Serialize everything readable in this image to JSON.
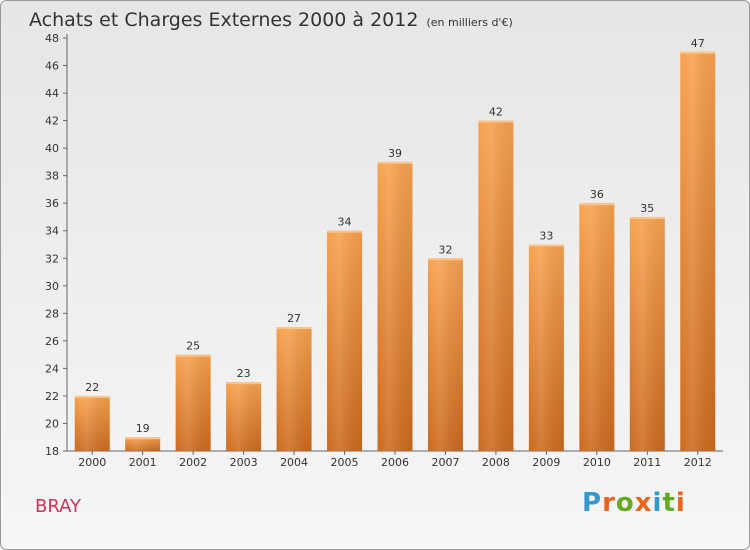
{
  "header": {
    "title": "Achats et Charges Externes 2000 à 2012",
    "subtitle": "(en milliers d'€)"
  },
  "footer": {
    "city": "BRAY",
    "logo_text": "Proxiti"
  },
  "colors": {
    "bar_light": "#f7a24f",
    "bar_dark": "#cc6a1f",
    "city_text": "#cc3355",
    "logo": [
      "#3399cc",
      "#e8651c",
      "#66aa22",
      "#e8651c",
      "#3399cc",
      "#66aa22",
      "#e8651c"
    ]
  },
  "chart_data": {
    "type": "bar",
    "title": "Achats et Charges Externes 2000 à 2012",
    "subtitle": "(en milliers d'€)",
    "categories": [
      "2000",
      "2001",
      "2002",
      "2003",
      "2004",
      "2005",
      "2006",
      "2007",
      "2008",
      "2009",
      "2010",
      "2011",
      "2012"
    ],
    "values": [
      22,
      19,
      25,
      23,
      27,
      34,
      39,
      32,
      42,
      33,
      36,
      35,
      47
    ],
    "ylim": [
      18,
      48
    ],
    "yticks": [
      18,
      20,
      22,
      24,
      26,
      28,
      30,
      32,
      34,
      36,
      38,
      40,
      42,
      44,
      46,
      48
    ],
    "xlabel": "",
    "ylabel": "",
    "grid": false,
    "data_labels": true
  }
}
